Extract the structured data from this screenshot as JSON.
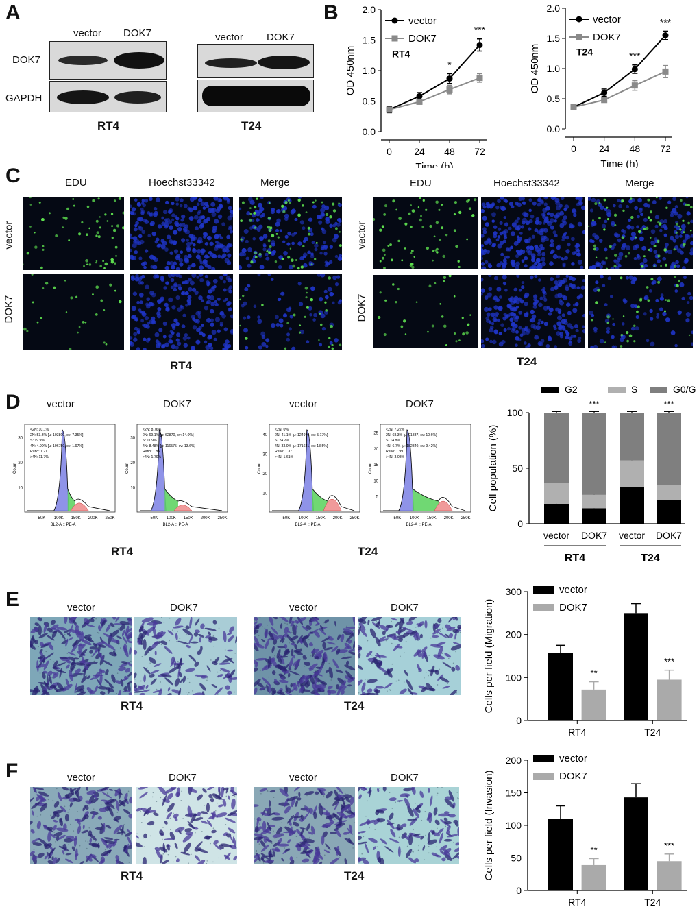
{
  "panels": {
    "A": "A",
    "B": "B",
    "C": "C",
    "D": "D",
    "E": "E",
    "F": "F"
  },
  "panelA": {
    "col_vector": "vector",
    "col_dok7": "DOK7",
    "row_dok7": "DOK7",
    "row_gapdh": "GAPDH",
    "cell_rt4": "RT4",
    "cell_t24": "T24"
  },
  "panelC": {
    "cols": [
      "EDU",
      "Hoechst33342",
      "Merge"
    ],
    "rows": [
      "vector",
      "DOK7"
    ],
    "cell_rt4": "RT4",
    "cell_t24": "T24"
  },
  "panelD": {
    "flow_titles": [
      "vector",
      "DOK7",
      "vector",
      "DOK7"
    ],
    "cell_rt4": "RT4",
    "cell_t24": "T24",
    "flow_xlabel": "BL2-A :: PE-A",
    "flow_ylabel": "Count",
    "flow_xticks": [
      "50K",
      "100K",
      "150K",
      "200K",
      "250K"
    ],
    "flow_stats": [
      [
        "<2N: 10.1%",
        "2N: 53.3% [μ: 103809, cv: 7.35%]",
        "S: 19.9%",
        "4N: 4.90% [μ: 196750, cv: 1.97%]",
        "Ratio: 1.21",
        ">4N: 11.7%"
      ],
      [
        "<2N: 8.76%",
        "2N: 69.1% [μ: 62870, cv: 14.0%]",
        "S: 11.9%",
        "4N: 8.48% [μ: 116575, cv: 13.6%]",
        "Ratio: 1.85",
        ">4N: 1.79%"
      ],
      [
        "<2N: 0%",
        "2N: 41.1% [μ: 124970, cv: 5.17%]",
        "S: 24.2%",
        "4N: 33.0% [μ: 171681, cv: 13.5%]",
        "Ratio: 1.37",
        ">4N: 1.61%"
      ],
      [
        "<2N: 7.22%",
        "2N: 68.3% [μ: 91837, cv: 10.6%]",
        "S: 14.8%",
        "4N: 6.7% [μ: 182840, cv: 9.42%]",
        "Ratio: 1.99",
        ">4N: 3.08%"
      ]
    ]
  },
  "panelE": {
    "cols": [
      "vector",
      "DOK7",
      "vector",
      "DOK7"
    ],
    "cell_rt4": "RT4",
    "cell_t24": "T24"
  },
  "panelF": {
    "cols": [
      "vector",
      "DOK7",
      "vector",
      "DOK7"
    ],
    "cell_rt4": "RT4",
    "cell_t24": "T24"
  },
  "colors": {
    "black": "#000000",
    "gray": "#8a8a8a",
    "lightgray": "#b0b0b0",
    "g0g1": "#7f7f7f"
  },
  "chart_data": [
    {
      "id": "B-RT4",
      "type": "line",
      "annotation": "RT4",
      "x": [
        0,
        24,
        48,
        72
      ],
      "xticks": [
        "0",
        "24",
        "48",
        "72"
      ],
      "yticks": [
        "0.0",
        "0.5",
        "1.0",
        "1.5",
        "2.0"
      ],
      "xlabel": "Time (h)",
      "ylabel": "OD 450nm",
      "ylim": [
        0,
        2.0
      ],
      "series": [
        {
          "name": "vector",
          "values": [
            0.36,
            0.58,
            0.87,
            1.42
          ],
          "err": [
            0.05,
            0.06,
            0.08,
            0.1
          ],
          "color": "#000000",
          "marker": "circle"
        },
        {
          "name": "DOK7",
          "values": [
            0.36,
            0.49,
            0.69,
            0.88
          ],
          "err": [
            0.04,
            0.04,
            0.07,
            0.07
          ],
          "color": "#8a8a8a",
          "marker": "square"
        }
      ],
      "sig": [
        "",
        "",
        "*",
        "***"
      ]
    },
    {
      "id": "B-T24",
      "type": "line",
      "annotation": "T24",
      "x": [
        0,
        24,
        48,
        72
      ],
      "xticks": [
        "0",
        "24",
        "48",
        "72"
      ],
      "yticks": [
        "0.0",
        "0.5",
        "1.0",
        "1.5",
        "2.0"
      ],
      "xlabel": "Time (h)",
      "ylabel": "OD 450nm",
      "ylim": [
        0,
        2.0
      ],
      "series": [
        {
          "name": "vector",
          "values": [
            0.36,
            0.6,
            0.99,
            1.55
          ],
          "err": [
            0.04,
            0.06,
            0.07,
            0.07
          ],
          "color": "#000000",
          "marker": "circle"
        },
        {
          "name": "DOK7",
          "values": [
            0.36,
            0.48,
            0.72,
            0.95
          ],
          "err": [
            0.04,
            0.04,
            0.08,
            0.1
          ],
          "color": "#8a8a8a",
          "marker": "square"
        }
      ],
      "sig": [
        "",
        "",
        "***",
        "***"
      ]
    },
    {
      "id": "D-cycle",
      "type": "bar",
      "stacked": true,
      "categories": [
        "vector",
        "DOK7",
        "vector",
        "DOK7"
      ],
      "groups": [
        "RT4",
        "T24"
      ],
      "ylabel": "Cell population (%)",
      "ylim": [
        0,
        100
      ],
      "yticks": [
        "0",
        "50",
        "100"
      ],
      "series": [
        {
          "name": "G2",
          "values": [
            18,
            14,
            33,
            21
          ],
          "err": [
            2,
            1,
            2,
            5
          ],
          "color": "#000000"
        },
        {
          "name": "S",
          "values": [
            19,
            12,
            24,
            14
          ],
          "err": [
            1,
            1,
            3,
            2
          ],
          "color": "#b0b0b0"
        },
        {
          "name": "G0/G1",
          "values": [
            63,
            74,
            43,
            65
          ],
          "err": [
            1,
            1,
            1,
            1
          ],
          "color": "#7f7f7f"
        }
      ],
      "sig": [
        "",
        "***",
        "",
        "***"
      ],
      "legend": "top"
    },
    {
      "id": "E-migration",
      "type": "bar",
      "categories": [
        "RT4",
        "T24"
      ],
      "ylabel": "Cells per field (Migration)",
      "ylim": [
        0,
        300
      ],
      "yticks": [
        "0",
        "100",
        "200",
        "300"
      ],
      "series": [
        {
          "name": "vector",
          "values": [
            157,
            250
          ],
          "err": [
            18,
            22
          ],
          "color": "#000000"
        },
        {
          "name": "DOK7",
          "values": [
            72,
            95
          ],
          "err": [
            18,
            22
          ],
          "color": "#aaaaaa"
        }
      ],
      "sig": [
        "**",
        "***"
      ],
      "legend": "top-left"
    },
    {
      "id": "F-invasion",
      "type": "bar",
      "categories": [
        "RT4",
        "T24"
      ],
      "ylabel": "Cells per field (Invasion)",
      "ylim": [
        0,
        200
      ],
      "yticks": [
        "0",
        "50",
        "100",
        "150",
        "200"
      ],
      "series": [
        {
          "name": "vector",
          "values": [
            110,
            143
          ],
          "err": [
            20,
            21
          ],
          "color": "#000000"
        },
        {
          "name": "DOK7",
          "values": [
            39,
            45
          ],
          "err": [
            10,
            11
          ],
          "color": "#aaaaaa"
        }
      ],
      "sig": [
        "**",
        "***"
      ],
      "legend": "top-left"
    }
  ]
}
